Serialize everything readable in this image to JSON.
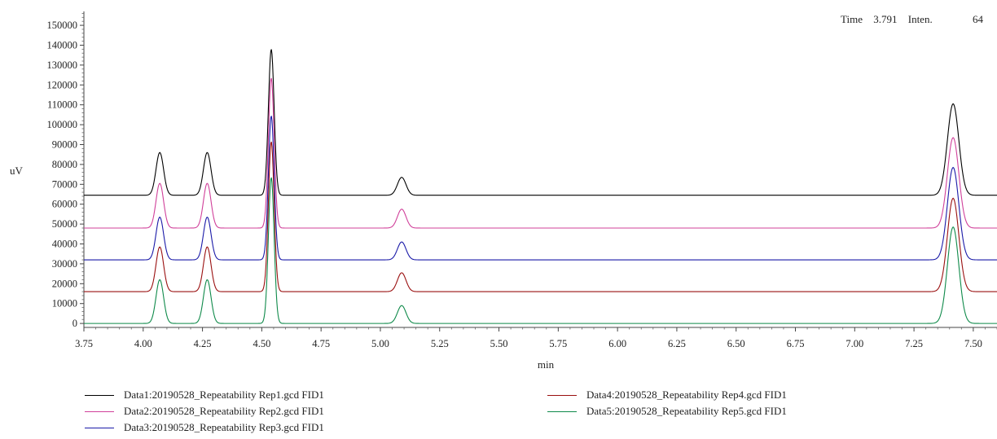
{
  "readout": {
    "time_label": "Time",
    "time_value": "3.791",
    "inten_label": "Inten.",
    "inten_value": "64"
  },
  "chart_data": {
    "type": "line",
    "xlabel": "min",
    "ylabel": "uV",
    "xlim": [
      3.75,
      7.6
    ],
    "ylim": [
      -2000,
      157000
    ],
    "x_ticks": [
      "3.75",
      "4.00",
      "4.25",
      "4.50",
      "4.75",
      "5.00",
      "5.25",
      "5.50",
      "5.75",
      "6.00",
      "6.25",
      "6.50",
      "6.75",
      "7.00",
      "7.25",
      "7.50"
    ],
    "y_ticks": [
      "0",
      "10000",
      "20000",
      "30000",
      "40000",
      "50000",
      "60000",
      "70000",
      "80000",
      "90000",
      "100000",
      "110000",
      "120000",
      "130000",
      "140000",
      "150000"
    ],
    "grid": false,
    "legend_position": "bottom",
    "peaks": [
      {
        "rt": 4.07,
        "width": 0.016
      },
      {
        "rt": 4.27,
        "width": 0.016
      },
      {
        "rt": 4.54,
        "width": 0.012
      },
      {
        "rt": 5.09,
        "width": 0.018
      },
      {
        "rt": 7.415,
        "width": 0.024
      }
    ],
    "series": [
      {
        "name": "Data1:20190528_Repeatability Rep1.gcd FID1",
        "color": "#000000",
        "baseline": 64500,
        "peak_apex": [
          86000,
          86000,
          138000,
          73500,
          110500
        ]
      },
      {
        "name": "Data2:20190528_Repeatability Rep2.gcd FID1",
        "color": "#d0409a",
        "baseline": 48000,
        "peak_apex": [
          70500,
          70500,
          123500,
          57500,
          93500
        ]
      },
      {
        "name": "Data3:20190528_Repeatability Rep3.gcd FID1",
        "color": "#1a1aa8",
        "baseline": 32000,
        "peak_apex": [
          53500,
          53500,
          104500,
          41000,
          78500
        ]
      },
      {
        "name": "Data4:20190528_Repeatability Rep4.gcd FID1",
        "color": "#9a1010",
        "baseline": 16000,
        "peak_apex": [
          38500,
          38500,
          91500,
          25500,
          63000
        ]
      },
      {
        "name": "Data5:20190528_Repeatability Rep5.gcd FID1",
        "color": "#0f8a4a",
        "baseline": 0,
        "peak_apex": [
          22000,
          22000,
          73500,
          9000,
          48500
        ]
      }
    ]
  }
}
